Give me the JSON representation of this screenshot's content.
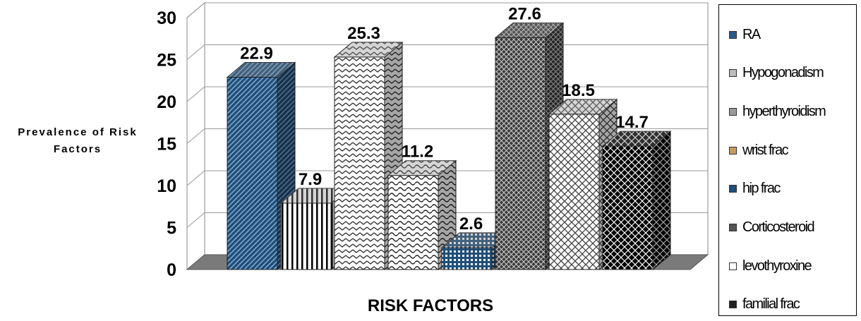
{
  "chart_data": {
    "type": "bar",
    "style": "3d-clustered",
    "xlabel": "RISK FACTORS",
    "ylabel": "Prevalence of Risk Factors",
    "ylim": [
      0,
      30
    ],
    "yticks": [
      "0",
      "5",
      "10",
      "15",
      "20",
      "25",
      "30"
    ],
    "grid": true,
    "legend_position": "right",
    "series": [
      {
        "name": "RA",
        "value": 22.9,
        "label": "22.9",
        "color": "#1f4e79",
        "pattern": "diagonal-stripes"
      },
      {
        "name": "Hypogonadism",
        "value": 7.9,
        "label": "7.9",
        "color": "#ffffff",
        "pattern": "vertical-stripes"
      },
      {
        "name": "hyperthyroidism",
        "value": 25.3,
        "label": "25.3",
        "color": "#ffffff",
        "pattern": "zigzag"
      },
      {
        "name": "wrist frac",
        "value": 11.2,
        "label": "11.2",
        "color": "#ffffff",
        "pattern": "wave"
      },
      {
        "name": "hip frac",
        "value": 2.6,
        "label": "2.6",
        "color": "#1f4e79",
        "pattern": "grid-dots"
      },
      {
        "name": "Corticosteroid",
        "value": 27.6,
        "label": "27.6",
        "color": "#404040",
        "pattern": "crosshatch"
      },
      {
        "name": "levothyroxine",
        "value": 18.5,
        "label": "18.5",
        "color": "#ffffff",
        "pattern": "lattice"
      },
      {
        "name": "familial frac",
        "value": 14.7,
        "label": "14.7",
        "color": "#000000",
        "pattern": "diamond-grid"
      }
    ]
  },
  "legend_swatches": [
    "#2a5a8c",
    "#bbbbbb",
    "#999999",
    "#c89a60",
    "#1f4e79",
    "#555555",
    "#ffffff",
    "#222222"
  ]
}
